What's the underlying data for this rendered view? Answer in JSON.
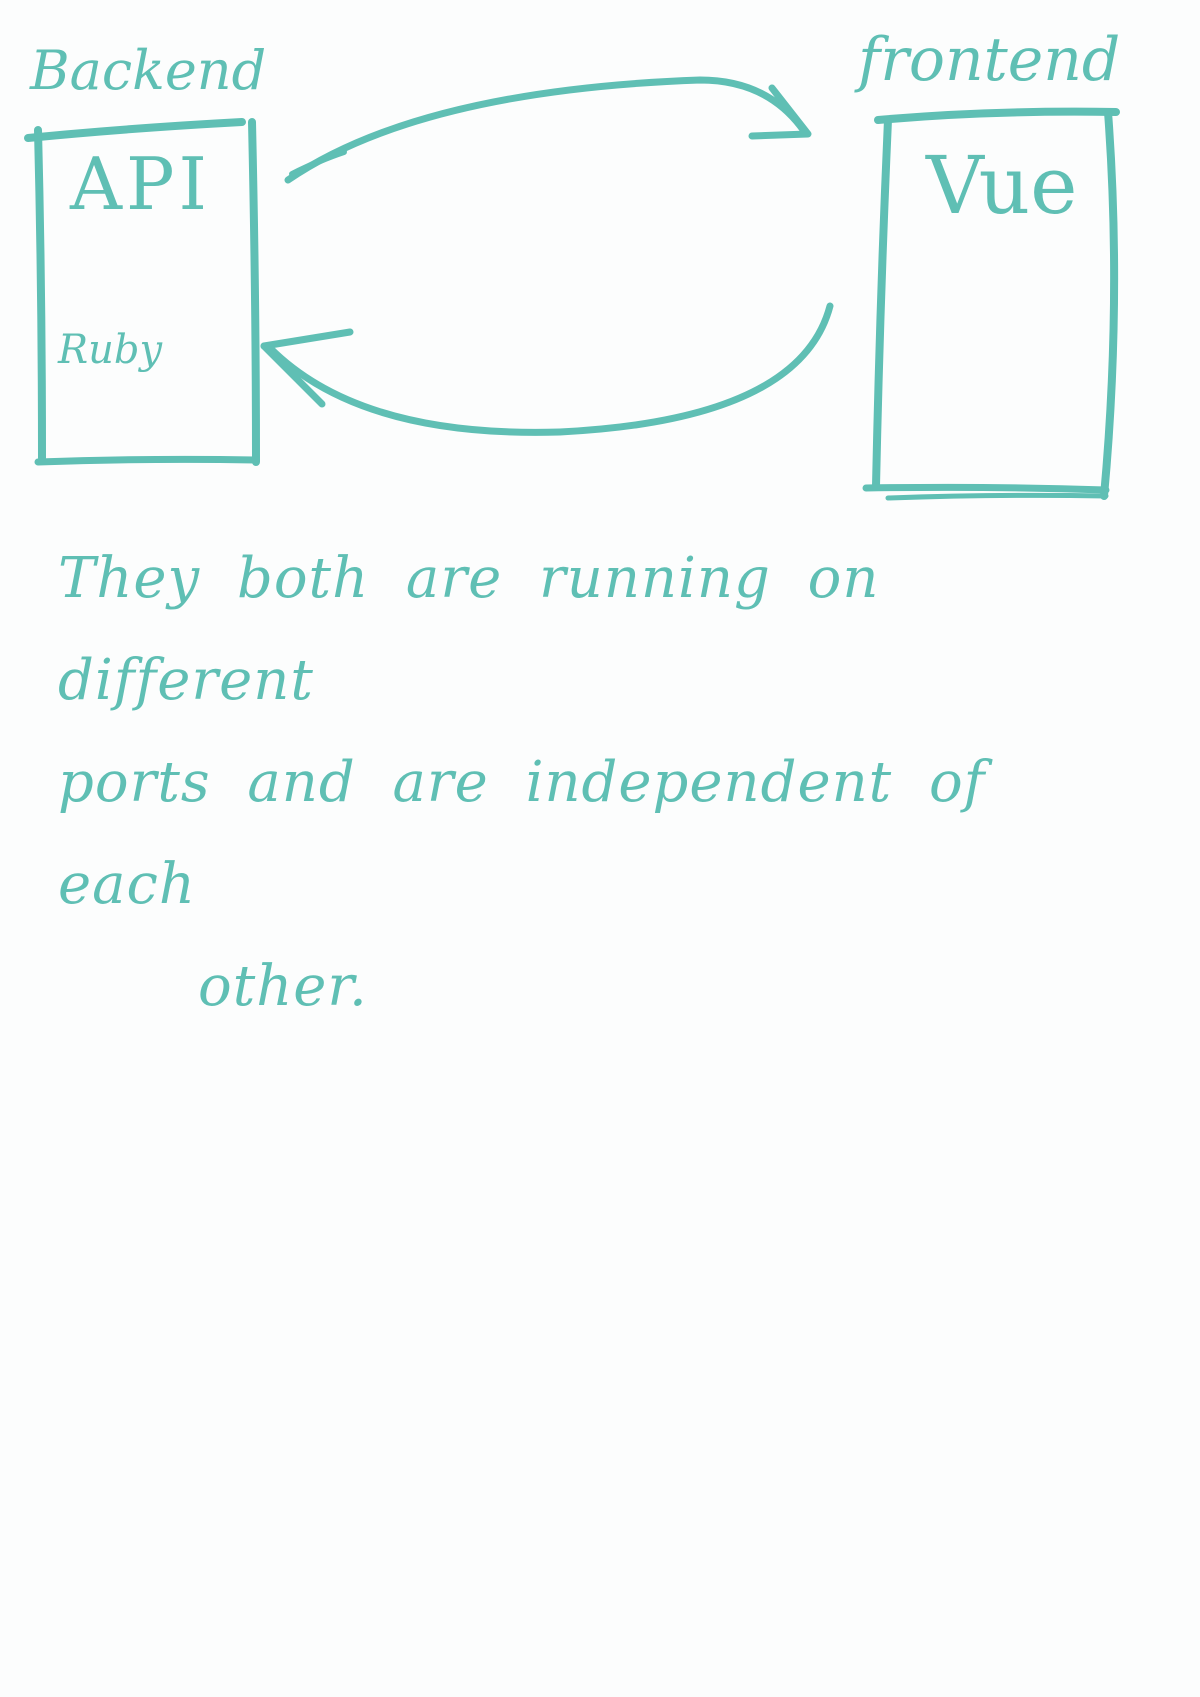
{
  "backend": {
    "title": "Backend",
    "primary_label": "API",
    "secondary_label": "Ruby"
  },
  "frontend": {
    "title": "frontend",
    "primary_label": "Vue"
  },
  "note": {
    "line_1": "They both are running on different",
    "line_2": "ports and are independent of each",
    "line_3": "other."
  },
  "colors": {
    "ink": "#5fbfb4",
    "paper": "#fcfdfd"
  }
}
